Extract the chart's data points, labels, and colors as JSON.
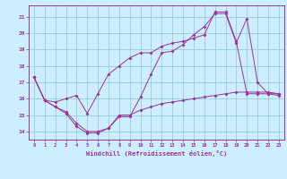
{
  "xlabel": "Windchill (Refroidissement éolien,°C)",
  "bg_color": "#cceeff",
  "grid_color": "#99ccdd",
  "line_color": "#993399",
  "xlim": [
    -0.5,
    23.5
  ],
  "ylim": [
    13.5,
    21.7
  ],
  "xticks": [
    0,
    1,
    2,
    3,
    4,
    5,
    6,
    7,
    8,
    9,
    10,
    11,
    12,
    13,
    14,
    15,
    16,
    17,
    18,
    19,
    20,
    21,
    22,
    23
  ],
  "yticks": [
    14,
    15,
    16,
    17,
    18,
    19,
    20,
    21
  ],
  "curve1_x": [
    0,
    1,
    2,
    3,
    4,
    5,
    6,
    7,
    8,
    9,
    10,
    11,
    12,
    13,
    14,
    15,
    16,
    17,
    18,
    19,
    20,
    21,
    22,
    23
  ],
  "curve1_y": [
    17.3,
    15.9,
    15.5,
    15.1,
    14.3,
    13.9,
    13.9,
    14.2,
    14.9,
    14.9,
    16.1,
    17.5,
    18.8,
    18.9,
    19.3,
    19.9,
    20.4,
    21.2,
    21.2,
    19.4,
    20.9,
    17.0,
    16.3,
    16.2
  ],
  "curve2_x": [
    0,
    1,
    2,
    3,
    4,
    5,
    6,
    7,
    8,
    9,
    10,
    11,
    12,
    13,
    14,
    15,
    16,
    17,
    18,
    19,
    20,
    21,
    22,
    23
  ],
  "curve2_y": [
    17.3,
    15.9,
    15.8,
    16.0,
    16.2,
    15.1,
    16.3,
    17.5,
    18.0,
    18.5,
    18.8,
    18.8,
    19.2,
    19.4,
    19.5,
    19.7,
    19.9,
    21.3,
    21.3,
    19.5,
    16.3,
    16.3,
    16.3,
    16.3
  ],
  "curve3_x": [
    0,
    1,
    2,
    3,
    4,
    5,
    6,
    7,
    8,
    9,
    10,
    11,
    12,
    13,
    14,
    15,
    16,
    17,
    18,
    19,
    20,
    21,
    22,
    23
  ],
  "curve3_y": [
    17.3,
    15.9,
    15.5,
    15.2,
    14.5,
    14.0,
    14.0,
    14.2,
    15.0,
    15.0,
    15.3,
    15.5,
    15.7,
    15.8,
    15.9,
    16.0,
    16.1,
    16.2,
    16.3,
    16.4,
    16.4,
    16.4,
    16.4,
    16.3
  ]
}
